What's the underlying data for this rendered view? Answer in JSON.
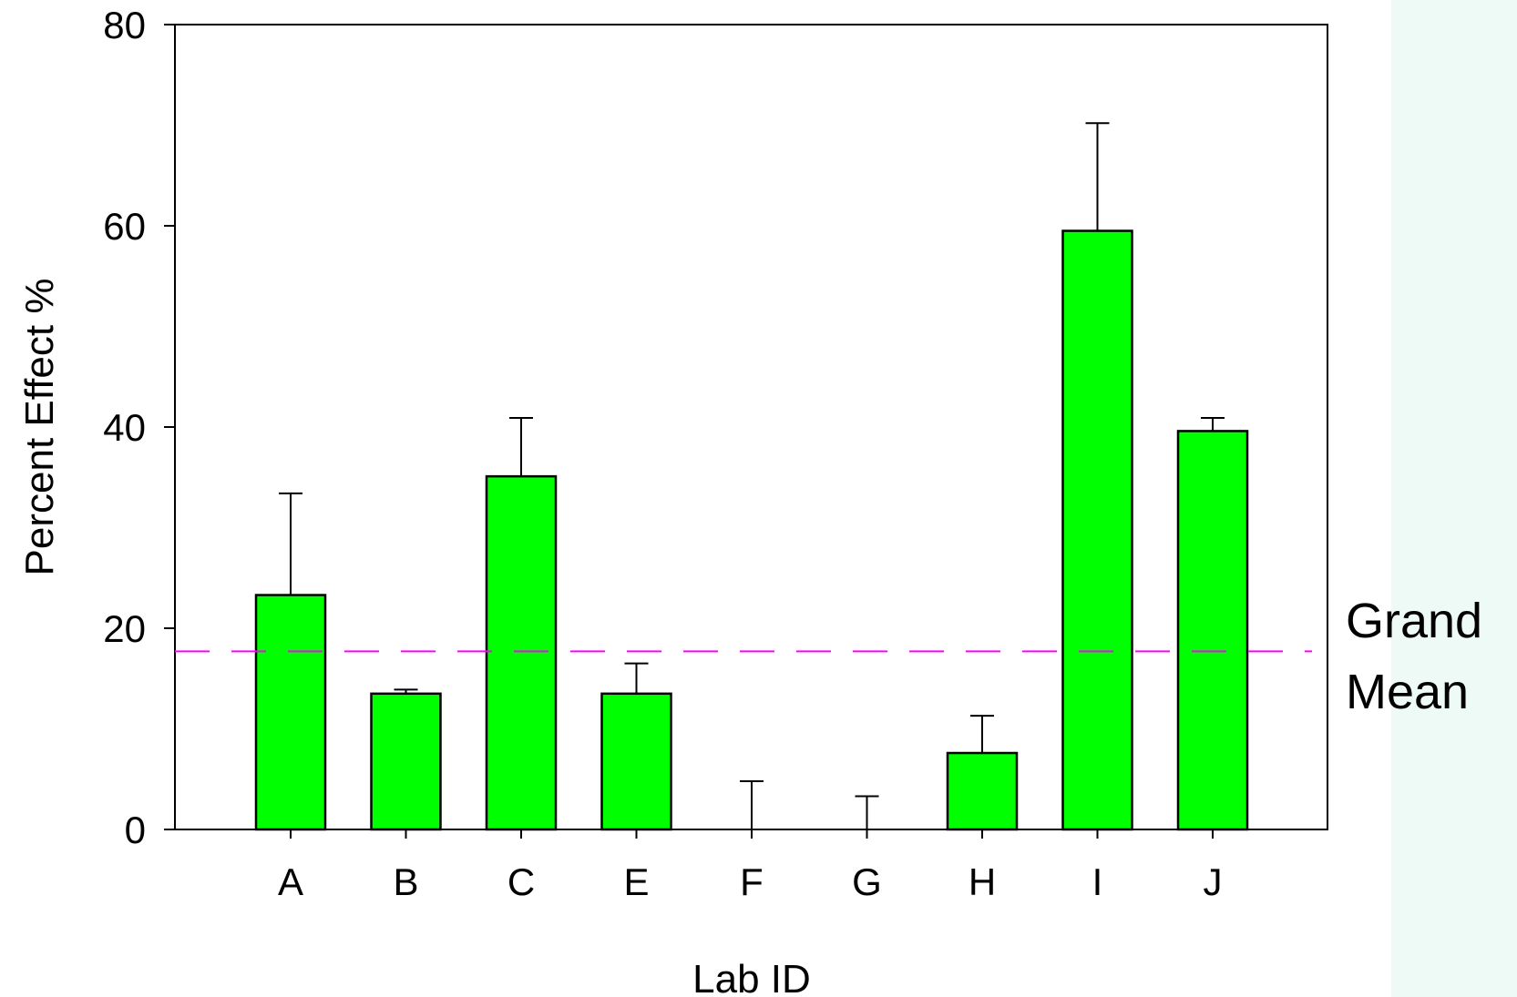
{
  "chart_data": {
    "type": "bar",
    "title": "",
    "xlabel": "Lab ID",
    "ylabel": "Percent Effect %",
    "categories": [
      "A",
      "B",
      "C",
      "E",
      "F",
      "G",
      "H",
      "I",
      "J"
    ],
    "values": [
      23.3,
      13.5,
      35.1,
      13.5,
      0,
      0,
      7.6,
      59.5,
      39.6
    ],
    "error_upper": [
      33.4,
      13.9,
      40.9,
      16.5,
      4.8,
      3.3,
      11.3,
      70.2,
      40.9
    ],
    "ylim": [
      0,
      80
    ],
    "yticks": [
      0,
      20,
      40,
      60,
      80
    ],
    "grid": false,
    "reference_line": {
      "value": 17.7,
      "label_line1": "Grand",
      "label_line2": "Mean",
      "style": "dashed"
    },
    "colors": {
      "bar": "#00ff00",
      "bar_edge": "#000000",
      "reference_line": "#ff00ff",
      "right_panel": "#eefaf6"
    }
  }
}
